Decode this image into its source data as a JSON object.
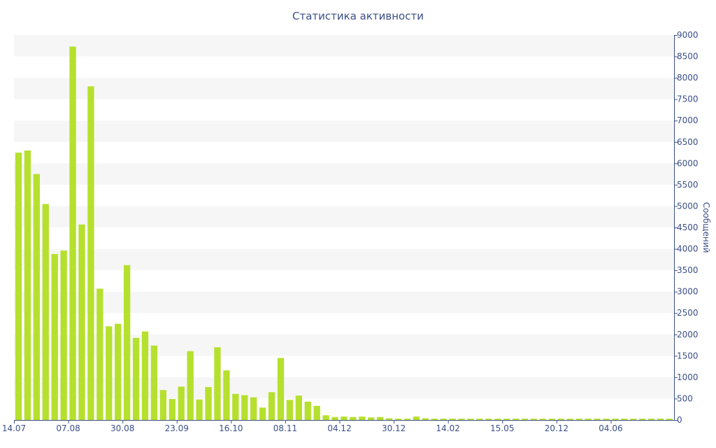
{
  "chart_data": {
    "type": "bar",
    "title": "Статистика активности",
    "ylabel": "Сообщений",
    "xlabel": "",
    "y_axis_side": "right",
    "ylim": [
      0,
      9000
    ],
    "yticks": [
      0,
      500,
      1000,
      1500,
      2000,
      2500,
      3000,
      3500,
      4000,
      4500,
      5000,
      5500,
      6000,
      6500,
      7000,
      7500,
      8000,
      8500,
      9000
    ],
    "grid": "alternating horizontal bands",
    "x_tick_labels": [
      {
        "label": "14.07",
        "index": 0
      },
      {
        "label": "07.08",
        "index": 6
      },
      {
        "label": "30.08",
        "index": 12
      },
      {
        "label": "23.09",
        "index": 18
      },
      {
        "label": "16.10",
        "index": 24
      },
      {
        "label": "08.11",
        "index": 30
      },
      {
        "label": "04.12",
        "index": 36
      },
      {
        "label": "30.12",
        "index": 42
      },
      {
        "label": "14.02",
        "index": 48
      },
      {
        "label": "15.05",
        "index": 54
      },
      {
        "label": "20.12",
        "index": 60
      },
      {
        "label": "04.06",
        "index": 66
      }
    ],
    "bar_color": "#b5e02e",
    "values": [
      6250,
      6300,
      5750,
      5050,
      3880,
      3960,
      8730,
      4570,
      7800,
      3070,
      2190,
      2250,
      3620,
      1920,
      2070,
      1740,
      700,
      490,
      780,
      1610,
      480,
      770,
      1700,
      1160,
      610,
      580,
      530,
      290,
      650,
      1450,
      470,
      570,
      430,
      330,
      110,
      70,
      80,
      70,
      80,
      60,
      70,
      40,
      30,
      30,
      80,
      40,
      30,
      30,
      30,
      30,
      30,
      30,
      30,
      30,
      30,
      30,
      30,
      30,
      30,
      30,
      30,
      30,
      30,
      30,
      30,
      30,
      30,
      30,
      30,
      30,
      30,
      30,
      30
    ]
  }
}
